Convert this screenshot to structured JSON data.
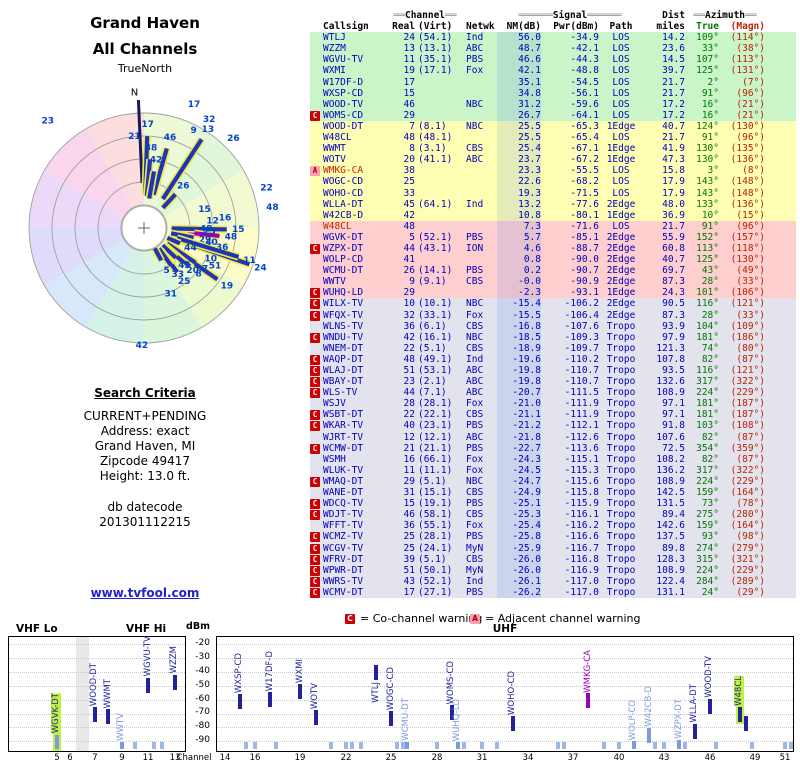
{
  "title": {
    "line1": "Grand Haven",
    "line2": "All Channels"
  },
  "polar": {
    "true_north": "TrueNorth",
    "north_label": "N",
    "sector_colors": [
      "#ecf8d6",
      "#e2f6da",
      "#f2fad2",
      "#fdfcc8",
      "#ecfad0",
      "#daf6dc",
      "#d4f2e8",
      "#d6e8fa",
      "#dedcfa",
      "#ecd8f8",
      "#fad6ec",
      "#fcdede"
    ],
    "rings": [
      23,
      46,
      69,
      92,
      115
    ],
    "bars": [
      {
        "ch": "13",
        "az": 33,
        "r0": 0.3,
        "r1": 0.92
      },
      {
        "ch": "17",
        "az": 2,
        "r0": 0.3,
        "r1": 0.8
      },
      {
        "ch": "46",
        "az": 16,
        "r0": 0.3,
        "r1": 0.72
      },
      {
        "ch": "38",
        "az": 5,
        "r0": 0.28,
        "r1": 0.6
      },
      {
        "ch": "42",
        "az": 10,
        "r0": 0.26,
        "r1": 0.5
      },
      {
        "ch": "26",
        "az": 43,
        "r0": 0.24,
        "r1": 0.4
      },
      {
        "ch": "15",
        "az": 91,
        "r0": 0.3,
        "r1": 0.72
      },
      {
        "ch": "48",
        "az": 96,
        "r0": 0.34,
        "r1": 0.66,
        "color": "purple"
      },
      {
        "ch": "48",
        "az": 91,
        "r0": 0.24,
        "r1": 0.44
      },
      {
        "ch": "29",
        "az": 101,
        "r0": 0.24,
        "r1": 0.44
      },
      {
        "ch": "24",
        "az": 109,
        "r0": 0.3,
        "r1": 0.97
      },
      {
        "ch": "11",
        "az": 107,
        "r0": 0.3,
        "r1": 0.86
      },
      {
        "ch": "44",
        "az": 113,
        "r0": 0.22,
        "r1": 0.34
      },
      {
        "ch": "19",
        "az": 125,
        "r0": 0.3,
        "r1": 0.78
      },
      {
        "ch": "7",
        "az": 124,
        "r0": 0.24,
        "r1": 0.54
      },
      {
        "ch": "8",
        "az": 130,
        "r0": 0.24,
        "r1": 0.52
      },
      {
        "ch": "20",
        "az": 131,
        "r0": 0.26,
        "r1": 0.46
      },
      {
        "ch": "45",
        "az": 133,
        "r0": 0.22,
        "r1": 0.38
      },
      {
        "ch": "25",
        "az": 143,
        "r0": 0.24,
        "r1": 0.48
      },
      {
        "ch": "33",
        "az": 144,
        "r0": 0.22,
        "r1": 0.4
      },
      {
        "ch": "5",
        "az": 152,
        "r0": 0.2,
        "r1": 0.32
      }
    ],
    "points": [
      {
        "ch": "23",
        "az": 318,
        "r": 1.25
      },
      {
        "ch": "9",
        "az": 27,
        "r": 0.95
      },
      {
        "ch": "32",
        "az": 31,
        "r": 1.1
      },
      {
        "ch": "26",
        "az": 45,
        "r": 1.1
      },
      {
        "ch": "17",
        "az": 22,
        "r": 1.16
      },
      {
        "ch": "22",
        "az": 72,
        "r": 1.12
      },
      {
        "ch": "48",
        "az": 81,
        "r": 1.13
      },
      {
        "ch": "42",
        "az": 181,
        "r": 1.02
      },
      {
        "ch": "36",
        "az": 104,
        "r": 0.7
      },
      {
        "ch": "40",
        "az": 102,
        "r": 0.6
      },
      {
        "ch": "10",
        "az": 115,
        "r": 0.64
      },
      {
        "ch": "51",
        "az": 118,
        "r": 0.7
      },
      {
        "ch": "12",
        "az": 84,
        "r": 0.6
      },
      {
        "ch": "16",
        "az": 83,
        "r": 0.71
      },
      {
        "ch": "31",
        "az": 158,
        "r": 0.62
      },
      {
        "ch": "15",
        "az": 73,
        "r": 0.55
      },
      {
        "ch": "25",
        "az": 93,
        "r": 0.57
      },
      {
        "ch": "21",
        "az": 354,
        "r": 0.8
      }
    ]
  },
  "search": {
    "heading": "Search Criteria",
    "lines": [
      "CURRENT+PENDING",
      "Address: exact",
      "Grand Haven, MI",
      "Zipcode 49417",
      "Height: 13.0 ft."
    ],
    "datecode_label": "db datecode",
    "datecode": "201301112215",
    "link": "www.tvfool.com"
  },
  "table_headers": {
    "channel": "Channel",
    "signal": "Signal",
    "dist": "Dist",
    "azimuth": "Azimuth",
    "callsign": "Callsign",
    "real": "Real",
    "virt": "(Virt)",
    "netwk": "Netwk",
    "nm": "NM(dB)",
    "pwr": "Pwr(dBm)",
    "path": "Path",
    "miles": "miles",
    "true": "True",
    "magn": "(Magn)"
  },
  "legend": {
    "c_symbol": "C",
    "c_text": "= Co-channel warning",
    "a_symbol": "A",
    "a_text": "= Adjacent channel warning"
  },
  "charts": {
    "dbm_label": "dBm",
    "dbm_ticks": [
      -20,
      -30,
      -40,
      -50,
      -60,
      -70,
      -80,
      -90
    ],
    "channel_label": "Channel",
    "vhf_lo_label": "VHF Lo",
    "vhf_hi_label": "VHF Hi",
    "uhf_label": "UHF",
    "vhf_ticks": [
      5,
      6,
      7,
      9,
      11,
      13
    ],
    "uhf_ticks": [
      14,
      16,
      19,
      22,
      25,
      28,
      31,
      34,
      37,
      40,
      43,
      46,
      49,
      51
    ]
  },
  "colors": {
    "row_strong": "#c9f5c9",
    "row_moderate": "#ffffb3",
    "row_weak": "#ffcfcf",
    "row_verylow": "#e3e3ee",
    "text_blue": "#0000bb",
    "azimuth_true_green": "#007700",
    "azimuth_magn_red": "#bb2200",
    "warning_red": "#cc0000",
    "warning_pink": "#ff9db0",
    "bar_dark": "#22229b",
    "bar_light": "#7b9ce0",
    "bar_stub": "#9db8e8",
    "bar_purple": "#9900bb",
    "highlight_green": "#bdf23d",
    "link_blue": "#2222cc",
    "callsign_red": "#cc2200"
  },
  "chart_data": {
    "type": "table",
    "title": "Grand Haven All Channels",
    "columns": [
      "marker",
      "callsign",
      "real_ch",
      "virt_ch",
      "network",
      "nm_db",
      "pwr_dbm",
      "path",
      "dist_miles",
      "azimuth_true",
      "azimuth_magn",
      "group",
      "flag"
    ],
    "rows": [
      [
        "",
        "WTLJ",
        "24",
        "(54.1)",
        "Ind",
        "56.0",
        "-34.9",
        "LOS",
        "14.2",
        "109°",
        "(114°)",
        "g",
        ""
      ],
      [
        "",
        "WZZM",
        "13",
        "(13.1)",
        "ABC",
        "48.7",
        "-42.1",
        "LOS",
        "23.6",
        "33°",
        "(38°)",
        "g",
        ""
      ],
      [
        "",
        "WGVU-TV",
        "11",
        "(35.1)",
        "PBS",
        "46.6",
        "-44.3",
        "LOS",
        "14.5",
        "107°",
        "(113°)",
        "g",
        ""
      ],
      [
        "",
        "WXMI",
        "19",
        "(17.1)",
        "Fox",
        "42.1",
        "-48.8",
        "LOS",
        "39.7",
        "125°",
        "(131°)",
        "g",
        ""
      ],
      [
        "",
        "W17DF-D",
        "17",
        "",
        "",
        "35.1",
        "-54.5",
        "LOS",
        "21.7",
        "2°",
        "(7°)",
        "g",
        ""
      ],
      [
        "",
        "WXSP-CD",
        "15",
        "",
        "",
        "34.8",
        "-56.1",
        "LOS",
        "21.7",
        "91°",
        "(96°)",
        "g",
        ""
      ],
      [
        "",
        "WOOD-TV",
        "46",
        "",
        "NBC",
        "31.2",
        "-59.6",
        "LOS",
        "17.2",
        "16°",
        "(21°)",
        "g",
        ""
      ],
      [
        "C",
        "WOMS-CD",
        "29",
        "",
        "",
        "26.7",
        "-64.1",
        "LOS",
        "17.2",
        "16°",
        "(21°)",
        "g",
        ""
      ],
      [
        "",
        "WOOD-DT",
        "7",
        "(8.1)",
        "NBC",
        "25.5",
        "-65.3",
        "1Edge",
        "40.7",
        "124°",
        "(130°)",
        "y",
        ""
      ],
      [
        "",
        "W48CL",
        "48",
        "(48.1)",
        "",
        "25.5",
        "-65.4",
        "LOS",
        "21.7",
        "91°",
        "(96°)",
        "y",
        "hlg"
      ],
      [
        "",
        "WWMT",
        "8",
        "(3.1)",
        "CBS",
        "25.4",
        "-67.1",
        "1Edge",
        "41.9",
        "130°",
        "(135°)",
        "y",
        ""
      ],
      [
        "",
        "WOTV",
        "20",
        "(41.1)",
        "ABC",
        "23.7",
        "-67.2",
        "1Edge",
        "47.3",
        "130°",
        "(136°)",
        "y",
        ""
      ],
      [
        "A",
        "WMKG-CA",
        "38",
        "",
        "",
        "23.3",
        "-55.5",
        "LOS",
        "15.8",
        "3°",
        "(8°)",
        "y",
        "hlp"
      ],
      [
        "",
        "WOGC-CD",
        "25",
        "",
        "",
        "22.6",
        "-68.2",
        "LOS",
        "17.9",
        "143°",
        "(148°)",
        "y",
        ""
      ],
      [
        "",
        "WOHO-CD",
        "33",
        "",
        "",
        "19.3",
        "-71.5",
        "LOS",
        "17.9",
        "143°",
        "(148°)",
        "y",
        ""
      ],
      [
        "",
        "WLLA-DT",
        "45",
        "(64.1)",
        "Ind",
        "13.2",
        "-77.6",
        "2Edge",
        "48.0",
        "133°",
        "(136°)",
        "y",
        ""
      ],
      [
        "",
        "W42CB-D",
        "42",
        "",
        "",
        "10.8",
        "-80.1",
        "1Edge",
        "36.9",
        "10°",
        "(15°)",
        "y",
        ""
      ],
      [
        "",
        "W48CL",
        "48",
        "",
        "",
        "7.3",
        "-71.6",
        "LOS",
        "21.7",
        "91°",
        "(96°)",
        "p",
        "red"
      ],
      [
        "",
        "WGVK-DT",
        "5",
        "(52.1)",
        "PBS",
        "5.7",
        "-85.1",
        "2Edge",
        "55.9",
        "152°",
        "(157°)",
        "p",
        "hlg"
      ],
      [
        "C",
        "WZPX-DT",
        "44",
        "(43.1)",
        "ION",
        "4.6",
        "-88.7",
        "2Edge",
        "60.8",
        "113°",
        "(118°)",
        "p",
        ""
      ],
      [
        "",
        "WOLP-CD",
        "41",
        "",
        "",
        "0.8",
        "-90.0",
        "2Edge",
        "40.7",
        "125°",
        "(130°)",
        "p",
        ""
      ],
      [
        "",
        "WCMU-DT",
        "26",
        "(14.1)",
        "PBS",
        "0.2",
        "-90.7",
        "2Edge",
        "69.7",
        "43°",
        "(49°)",
        "p",
        ""
      ],
      [
        "",
        "WWTV",
        "9",
        "(9.1)",
        "CBS",
        "-0.0",
        "-90.9",
        "2Edge",
        "87.3",
        "28°",
        "(33°)",
        "p",
        ""
      ],
      [
        "C",
        "WUHQ-LD",
        "29",
        "",
        "",
        "-2.3",
        "-93.1",
        "1Edge",
        "24.3",
        "101°",
        "(106°)",
        "p",
        ""
      ],
      [
        "C",
        "WILX-TV",
        "10",
        "(10.1)",
        "NBC",
        "-15.4",
        "-106.2",
        "2Edge",
        "90.5",
        "116°",
        "(121°)",
        "gr",
        ""
      ],
      [
        "C",
        "WFQX-TV",
        "32",
        "(33.1)",
        "Fox",
        "-15.5",
        "-106.4",
        "2Edge",
        "87.3",
        "28°",
        "(33°)",
        "gr",
        ""
      ],
      [
        "",
        "WLNS-TV",
        "36",
        "(6.1)",
        "CBS",
        "-16.8",
        "-107.6",
        "Tropo",
        "93.9",
        "104°",
        "(109°)",
        "gr",
        ""
      ],
      [
        "C",
        "WNDU-TV",
        "42",
        "(16.1)",
        "NBC",
        "-18.5",
        "-109.3",
        "Tropo",
        "97.9",
        "181°",
        "(186°)",
        "gr",
        ""
      ],
      [
        "",
        "WNEM-DT",
        "22",
        "(5.1)",
        "CBS",
        "-18.9",
        "-109.7",
        "Tropo",
        "121.3",
        "74°",
        "(80°)",
        "gr",
        ""
      ],
      [
        "C",
        "WAQP-DT",
        "48",
        "(49.1)",
        "Ind",
        "-19.6",
        "-110.2",
        "Tropo",
        "107.8",
        "82°",
        "(87°)",
        "gr",
        ""
      ],
      [
        "C",
        "WLAJ-DT",
        "51",
        "(53.1)",
        "ABC",
        "-19.8",
        "-110.7",
        "Tropo",
        "93.5",
        "116°",
        "(121°)",
        "gr",
        ""
      ],
      [
        "C",
        "WBAY-DT",
        "23",
        "(2.1)",
        "ABC",
        "-19.8",
        "-110.7",
        "Tropo",
        "132.6",
        "317°",
        "(322°)",
        "gr",
        ""
      ],
      [
        "C",
        "WLS-TV",
        "44",
        "(7.1)",
        "ABC",
        "-20.7",
        "-111.5",
        "Tropo",
        "108.9",
        "224°",
        "(229°)",
        "gr",
        ""
      ],
      [
        "",
        "WSJV",
        "28",
        "(28.1)",
        "Fox",
        "-21.0",
        "-111.9",
        "Tropo",
        "97.1",
        "181°",
        "(187°)",
        "gr",
        ""
      ],
      [
        "C",
        "WSBT-DT",
        "22",
        "(22.1)",
        "CBS",
        "-21.1",
        "-111.9",
        "Tropo",
        "97.1",
        "181°",
        "(187°)",
        "gr",
        ""
      ],
      [
        "C",
        "WKAR-TV",
        "40",
        "(23.1)",
        "PBS",
        "-21.2",
        "-112.1",
        "Tropo",
        "91.8",
        "103°",
        "(108°)",
        "gr",
        ""
      ],
      [
        "",
        "WJRT-TV",
        "12",
        "(12.1)",
        "ABC",
        "-21.8",
        "-112.6",
        "Tropo",
        "107.6",
        "82°",
        "(87°)",
        "gr",
        ""
      ],
      [
        "C",
        "WCMW-DT",
        "21",
        "(21.1)",
        "PBS",
        "-22.7",
        "-113.6",
        "Tropo",
        "72.5",
        "354°",
        "(359°)",
        "gr",
        ""
      ],
      [
        "",
        "WSMH",
        "16",
        "(66.1)",
        "Fox",
        "-24.3",
        "-115.1",
        "Tropo",
        "108.2",
        "82°",
        "(87°)",
        "gr",
        ""
      ],
      [
        "",
        "WLUK-TV",
        "11",
        "(11.1)",
        "Fox",
        "-24.5",
        "-115.3",
        "Tropo",
        "136.2",
        "317°",
        "(322°)",
        "gr",
        ""
      ],
      [
        "C",
        "WMAQ-DT",
        "29",
        "(5.1)",
        "NBC",
        "-24.7",
        "-115.6",
        "Tropo",
        "108.9",
        "224°",
        "(229°)",
        "gr",
        ""
      ],
      [
        "",
        "WANE-DT",
        "31",
        "(15.1)",
        "CBS",
        "-24.9",
        "-115.8",
        "Tropo",
        "142.5",
        "159°",
        "(164°)",
        "gr",
        ""
      ],
      [
        "C",
        "WDCQ-TV",
        "15",
        "(19.1)",
        "PBS",
        "-25.1",
        "-115.9",
        "Tropo",
        "131.5",
        "73°",
        "(78°)",
        "gr",
        ""
      ],
      [
        "C",
        "WDJT-TV",
        "46",
        "(58.1)",
        "CBS",
        "-25.3",
        "-116.1",
        "Tropo",
        "89.4",
        "275°",
        "(280°)",
        "gr",
        ""
      ],
      [
        "",
        "WFFT-TV",
        "36",
        "(55.1)",
        "Fox",
        "-25.4",
        "-116.2",
        "Tropo",
        "142.6",
        "159°",
        "(164°)",
        "gr",
        ""
      ],
      [
        "C",
        "WCMZ-TV",
        "25",
        "(28.1)",
        "PBS",
        "-25.8",
        "-116.6",
        "Tropo",
        "137.5",
        "93°",
        "(98°)",
        "gr",
        ""
      ],
      [
        "C",
        "WCGV-TV",
        "25",
        "(24.1)",
        "MyN",
        "-25.9",
        "-116.7",
        "Tropo",
        "89.8",
        "274°",
        "(279°)",
        "gr",
        ""
      ],
      [
        "C",
        "WFRV-DT",
        "39",
        "(5.1)",
        "CBS",
        "-26.0",
        "-116.8",
        "Tropo",
        "128.3",
        "315°",
        "(321°)",
        "gr",
        ""
      ],
      [
        "C",
        "WPWR-DT",
        "51",
        "(50.1)",
        "MyN",
        "-26.0",
        "-116.9",
        "Tropo",
        "108.9",
        "224°",
        "(229°)",
        "gr",
        ""
      ],
      [
        "C",
        "WWRS-TV",
        "43",
        "(52.1)",
        "Ind",
        "-26.1",
        "-117.0",
        "Tropo",
        "122.4",
        "284°",
        "(289°)",
        "gr",
        ""
      ],
      [
        "C",
        "WCMV-DT",
        "17",
        "(27.1)",
        "PBS",
        "-26.2",
        "-117.0",
        "Tropo",
        "131.1",
        "24°",
        "(29°)",
        "gr",
        ""
      ]
    ]
  }
}
